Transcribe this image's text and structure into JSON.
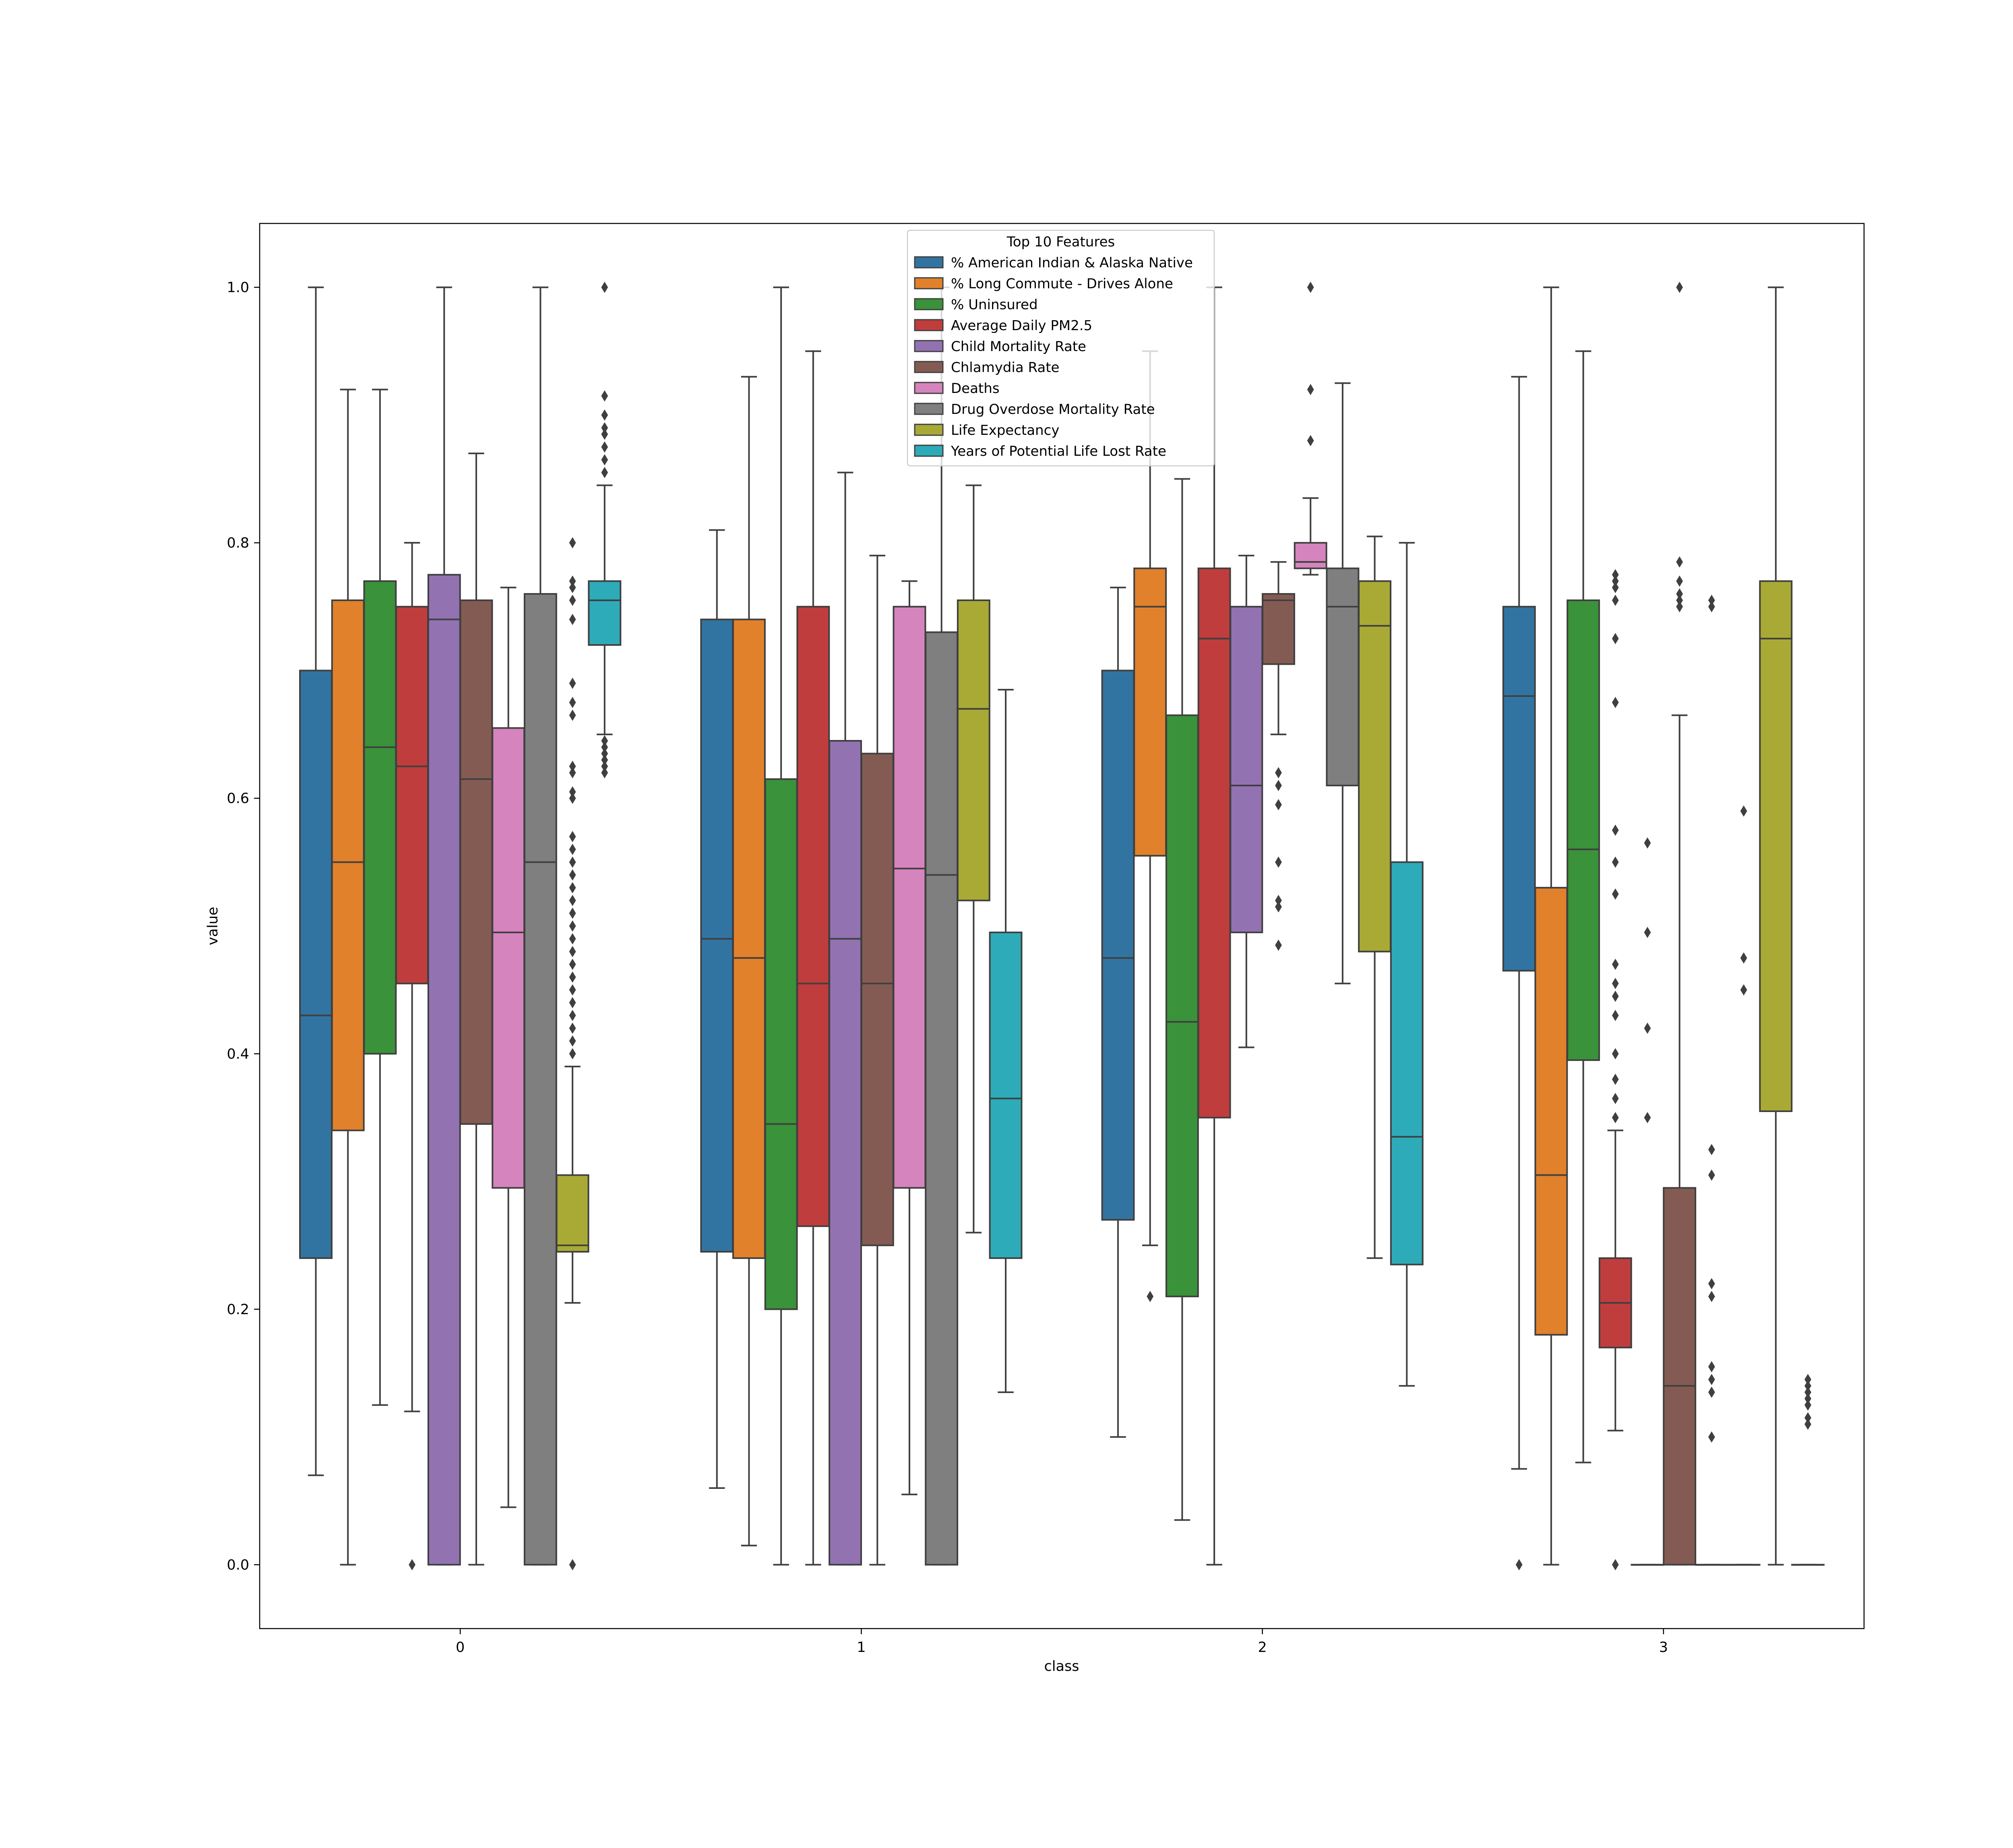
{
  "chart_data": {
    "type": "box",
    "xlabel": "class",
    "ylabel": "value",
    "categories": [
      "0",
      "1",
      "2",
      "3"
    ],
    "ylim": [
      -0.05,
      1.05
    ],
    "yticks": [
      "0.0",
      "0.2",
      "0.4",
      "0.6",
      "0.8",
      "1.0"
    ],
    "grid": false,
    "legend": {
      "title": "Top 10 Features",
      "placement": "upper center"
    },
    "series": [
      {
        "name": "% American Indian & Alaska Native",
        "color": "#3274a1",
        "boxes": [
          {
            "class": "0",
            "whislo": 0.07,
            "q1": 0.24,
            "med": 0.43,
            "q3": 0.7,
            "whishi": 1.0,
            "fliers": []
          },
          {
            "class": "1",
            "whislo": 0.06,
            "q1": 0.245,
            "med": 0.49,
            "q3": 0.74,
            "whishi": 0.81,
            "fliers": []
          },
          {
            "class": "2",
            "whislo": 0.1,
            "q1": 0.27,
            "med": 0.475,
            "q3": 0.7,
            "whishi": 0.765,
            "fliers": []
          },
          {
            "class": "3",
            "whislo": 0.075,
            "q1": 0.465,
            "med": 0.68,
            "q3": 0.75,
            "whishi": 0.93,
            "fliers": [
              0.0
            ]
          }
        ]
      },
      {
        "name": "% Long Commute - Drives Alone",
        "color": "#e1812c",
        "boxes": [
          {
            "class": "0",
            "whislo": 0.0,
            "q1": 0.34,
            "med": 0.55,
            "q3": 0.755,
            "whishi": 0.92,
            "fliers": []
          },
          {
            "class": "1",
            "whislo": 0.015,
            "q1": 0.24,
            "med": 0.475,
            "q3": 0.74,
            "whishi": 0.93,
            "fliers": []
          },
          {
            "class": "2",
            "whislo": 0.25,
            "q1": 0.555,
            "med": 0.75,
            "q3": 0.78,
            "whishi": 0.95,
            "fliers": [
              0.21
            ]
          },
          {
            "class": "3",
            "whislo": 0.0,
            "q1": 0.18,
            "med": 0.305,
            "q3": 0.53,
            "whishi": 1.0,
            "fliers": []
          }
        ]
      },
      {
        "name": "% Uninsured",
        "color": "#3a923a",
        "boxes": [
          {
            "class": "0",
            "whislo": 0.125,
            "q1": 0.4,
            "med": 0.64,
            "q3": 0.77,
            "whishi": 0.92,
            "fliers": []
          },
          {
            "class": "1",
            "whislo": 0.0,
            "q1": 0.2,
            "med": 0.345,
            "q3": 0.615,
            "whishi": 1.0,
            "fliers": []
          },
          {
            "class": "2",
            "whislo": 0.035,
            "q1": 0.21,
            "med": 0.425,
            "q3": 0.665,
            "whishi": 0.85,
            "fliers": []
          },
          {
            "class": "3",
            "whislo": 0.08,
            "q1": 0.395,
            "med": 0.56,
            "q3": 0.755,
            "whishi": 0.95,
            "fliers": []
          }
        ]
      },
      {
        "name": "Average Daily PM2.5",
        "color": "#c03d3e",
        "boxes": [
          {
            "class": "0",
            "whislo": 0.12,
            "q1": 0.455,
            "med": 0.625,
            "q3": 0.75,
            "whishi": 0.8,
            "fliers": [
              0.0
            ]
          },
          {
            "class": "1",
            "whislo": 0.0,
            "q1": 0.265,
            "med": 0.455,
            "q3": 0.75,
            "whishi": 0.95,
            "fliers": []
          },
          {
            "class": "2",
            "whislo": 0.0,
            "q1": 0.35,
            "med": 0.725,
            "q3": 0.78,
            "whishi": 1.0,
            "fliers": []
          },
          {
            "class": "3",
            "whislo": 0.105,
            "q1": 0.17,
            "med": 0.205,
            "q3": 0.24,
            "whishi": 0.34,
            "fliers": [
              0.0,
              0.35,
              0.365,
              0.38,
              0.4,
              0.43,
              0.445,
              0.455,
              0.47,
              0.525,
              0.55,
              0.575,
              0.675,
              0.725,
              0.755,
              0.765,
              0.77,
              0.775
            ]
          }
        ]
      },
      {
        "name": "Child Mortality Rate",
        "color": "#9372b2",
        "boxes": [
          {
            "class": "0",
            "whislo": 0.0,
            "q1": 0.0,
            "med": 0.74,
            "q3": 0.775,
            "whishi": 1.0,
            "fliers": []
          },
          {
            "class": "1",
            "whislo": 0.0,
            "q1": 0.0,
            "med": 0.49,
            "q3": 0.645,
            "whishi": 0.855,
            "fliers": []
          },
          {
            "class": "2",
            "whislo": 0.405,
            "q1": 0.495,
            "med": 0.61,
            "q3": 0.75,
            "whishi": 0.79,
            "fliers": []
          },
          {
            "class": "3",
            "whislo": 0.0,
            "q1": 0.0,
            "med": 0.0,
            "q3": 0.0,
            "whishi": 0.0,
            "fliers": [
              0.35,
              0.42,
              0.495,
              0.565
            ]
          }
        ]
      },
      {
        "name": "Chlamydia Rate",
        "color": "#845b53",
        "boxes": [
          {
            "class": "0",
            "whislo": 0.0,
            "q1": 0.345,
            "med": 0.615,
            "q3": 0.755,
            "whishi": 0.87,
            "fliers": []
          },
          {
            "class": "1",
            "whislo": 0.0,
            "q1": 0.25,
            "med": 0.455,
            "q3": 0.635,
            "whishi": 0.79,
            "fliers": []
          },
          {
            "class": "2",
            "whislo": 0.65,
            "q1": 0.705,
            "med": 0.755,
            "q3": 0.76,
            "whishi": 0.785,
            "fliers": [
              0.485,
              0.515,
              0.52,
              0.55,
              0.595,
              0.61,
              0.62
            ]
          },
          {
            "class": "3",
            "whislo": 0.0,
            "q1": 0.0,
            "med": 0.14,
            "q3": 0.295,
            "whishi": 0.665,
            "fliers": [
              0.75,
              0.755,
              0.76,
              0.77,
              0.785,
              1.0
            ]
          }
        ]
      },
      {
        "name": "Deaths",
        "color": "#d684bd",
        "boxes": [
          {
            "class": "0",
            "whislo": 0.045,
            "q1": 0.295,
            "med": 0.495,
            "q3": 0.655,
            "whishi": 0.765,
            "fliers": []
          },
          {
            "class": "1",
            "whislo": 0.055,
            "q1": 0.295,
            "med": 0.545,
            "q3": 0.75,
            "whishi": 0.77,
            "fliers": []
          },
          {
            "class": "2",
            "whislo": 0.775,
            "q1": 0.78,
            "med": 0.785,
            "q3": 0.8,
            "whishi": 0.835,
            "fliers": [
              0.88,
              0.92,
              1.0
            ]
          },
          {
            "class": "3",
            "whislo": 0.0,
            "q1": 0.0,
            "med": 0.0,
            "q3": 0.0,
            "whishi": 0.0,
            "fliers": [
              0.1,
              0.135,
              0.145,
              0.155,
              0.21,
              0.22,
              0.305,
              0.325,
              0.75,
              0.755
            ]
          }
        ]
      },
      {
        "name": "Drug Overdose Mortality Rate",
        "color": "#7f7f7f",
        "boxes": [
          {
            "class": "0",
            "whislo": 0.0,
            "q1": 0.0,
            "med": 0.55,
            "q3": 0.76,
            "whishi": 1.0,
            "fliers": []
          },
          {
            "class": "1",
            "whislo": 0.0,
            "q1": 0.0,
            "med": 0.54,
            "q3": 0.73,
            "whishi": 1.0,
            "fliers": []
          },
          {
            "class": "2",
            "whislo": 0.455,
            "q1": 0.61,
            "med": 0.75,
            "q3": 0.78,
            "whishi": 0.925,
            "fliers": []
          },
          {
            "class": "3",
            "whislo": 0.0,
            "q1": 0.0,
            "med": 0.0,
            "q3": 0.0,
            "whishi": 0.0,
            "fliers": [
              0.45,
              0.475,
              0.59
            ]
          }
        ]
      },
      {
        "name": "Life Expectancy",
        "color": "#a9aa35",
        "boxes": [
          {
            "class": "0",
            "whislo": 0.205,
            "q1": 0.245,
            "med": 0.25,
            "q3": 0.305,
            "whishi": 0.39,
            "fliers": [
              0.0,
              0.4,
              0.41,
              0.42,
              0.43,
              0.44,
              0.45,
              0.46,
              0.47,
              0.48,
              0.49,
              0.5,
              0.51,
              0.52,
              0.53,
              0.54,
              0.55,
              0.56,
              0.57,
              0.6,
              0.605,
              0.62,
              0.625,
              0.665,
              0.675,
              0.69,
              0.74,
              0.755,
              0.765,
              0.77,
              0.8
            ]
          },
          {
            "class": "1",
            "whislo": 0.26,
            "q1": 0.52,
            "med": 0.67,
            "q3": 0.755,
            "whishi": 0.845,
            "fliers": []
          },
          {
            "class": "2",
            "whislo": 0.24,
            "q1": 0.48,
            "med": 0.735,
            "q3": 0.77,
            "whishi": 0.805,
            "fliers": []
          },
          {
            "class": "3",
            "whislo": 0.0,
            "q1": 0.355,
            "med": 0.725,
            "q3": 0.77,
            "whishi": 1.0,
            "fliers": []
          }
        ]
      },
      {
        "name": "Years of Potential Life Lost Rate",
        "color": "#2eabb8",
        "boxes": [
          {
            "class": "0",
            "whislo": 0.65,
            "q1": 0.72,
            "med": 0.755,
            "q3": 0.77,
            "whishi": 0.845,
            "fliers": [
              0.62,
              0.625,
              0.63,
              0.635,
              0.64,
              0.645,
              0.855,
              0.865,
              0.875,
              0.885,
              0.89,
              0.9,
              0.915,
              1.0
            ]
          },
          {
            "class": "1",
            "whislo": 0.135,
            "q1": 0.24,
            "med": 0.365,
            "q3": 0.495,
            "whishi": 0.685,
            "fliers": []
          },
          {
            "class": "2",
            "whislo": 0.14,
            "q1": 0.235,
            "med": 0.335,
            "q3": 0.55,
            "whishi": 0.8,
            "fliers": []
          },
          {
            "class": "3",
            "whislo": 0.0,
            "q1": 0.0,
            "med": 0.0,
            "q3": 0.0,
            "whishi": 0.0,
            "fliers": [
              0.11,
              0.115,
              0.125,
              0.13,
              0.135,
              0.14,
              0.145
            ]
          }
        ]
      }
    ]
  }
}
